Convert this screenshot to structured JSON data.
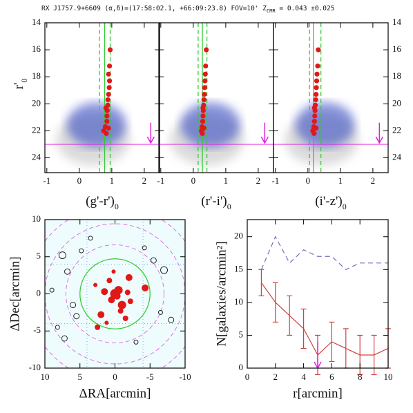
{
  "title": {
    "main": "RX J1757.9+6609 (α,δ)=(17:58:02.1, +66:09:23.8) FOV=10' Z",
    "sub": "CMR",
    "tail": " = 0.043 ±0.025"
  },
  "chart_data": [
    {
      "type": "cmd",
      "xlabel": {
        "text": "(g'-r')",
        "sub": "0"
      },
      "ylabel": {
        "text": "r'",
        "sub": "0"
      },
      "ytick_side": "left",
      "xlim": [
        -1.06,
        2.47
      ],
      "ylim": [
        25.1,
        14
      ],
      "xticks": [
        -1,
        0,
        1,
        2
      ],
      "yticks": [
        14,
        16,
        18,
        20,
        22,
        24
      ],
      "color": "#e01818",
      "x": [
        0.95,
        0.93,
        0.9,
        0.93,
        0.92,
        0.9,
        0.88,
        0.88,
        0.82,
        0.86,
        0.85,
        0.85,
        0.8,
        0.9,
        0.75,
        0.83
      ],
      "y": [
        16,
        17.2,
        17.8,
        18.3,
        18.8,
        19.3,
        19.7,
        20.1,
        20.3,
        20.5,
        20.9,
        21.3,
        21.7,
        21.8,
        22,
        22.2
      ],
      "sequence": {
        "center": 0.78,
        "edges": [
          0.62,
          0.95
        ]
      },
      "mag_limit": 23,
      "arrow": {
        "x": 2.2,
        "y": [
          21.4,
          22.9
        ]
      }
    },
    {
      "type": "cmd",
      "xlabel": {
        "text": "(r'-i')",
        "sub": "0"
      },
      "ytick_side": "none",
      "xlim": [
        -1.06,
        2.47
      ],
      "ylim": [
        25.1,
        14
      ],
      "xticks": [
        -1,
        0,
        1,
        2
      ],
      "yticks": [
        14,
        16,
        18,
        20,
        22,
        24
      ],
      "color": "#e01818",
      "x": [
        0.4,
        0.38,
        0.37,
        0.36,
        0.35,
        0.34,
        0.33,
        0.32,
        0.3,
        0.31,
        0.3,
        0.29,
        0.27,
        0.33,
        0.25,
        0.28
      ],
      "y": [
        16,
        17.2,
        17.8,
        18.3,
        18.8,
        19.3,
        19.7,
        20.1,
        20.3,
        20.5,
        20.9,
        21.3,
        21.7,
        21.8,
        22,
        22.2
      ],
      "sequence": {
        "center": 0.28,
        "edges": [
          0.15,
          0.42
        ]
      },
      "mag_limit": 23,
      "arrow": {
        "x": 2.2,
        "y": [
          21.4,
          22.9
        ]
      }
    },
    {
      "type": "cmd",
      "xlabel": {
        "text": "(i'-z')",
        "sub": "0"
      },
      "ytick_side": "right",
      "xlim": [
        -1.06,
        2.47
      ],
      "ylim": [
        25.1,
        14
      ],
      "xticks": [
        -1,
        0,
        1,
        2
      ],
      "yticks": [
        14,
        16,
        18,
        20,
        22,
        24
      ],
      "color": "#e01818",
      "x": [
        0.32,
        0.3,
        0.28,
        0.27,
        0.26,
        0.25,
        0.24,
        0.23,
        0.2,
        0.22,
        0.21,
        0.2,
        0.18,
        0.25,
        0.15,
        0.19
      ],
      "y": [
        16,
        17.2,
        17.8,
        18.3,
        18.8,
        19.3,
        19.7,
        20.1,
        20.3,
        20.5,
        20.9,
        21.3,
        21.7,
        21.8,
        22,
        22.2
      ],
      "sequence": {
        "center": 0.17,
        "edges": [
          0.05,
          0.4
        ]
      },
      "mag_limit": 23,
      "arrow": {
        "x": 2.2,
        "y": [
          21.4,
          22.9
        ]
      }
    },
    {
      "type": "skymap",
      "xlabel": "ΔRA[arcmin]",
      "ylabel": "ΔDec[arcmin]",
      "xlim": [
        10,
        -10
      ],
      "ylim": [
        -10,
        10
      ],
      "xticks": [
        10,
        5,
        0,
        -5,
        -10
      ],
      "yticks": [
        -10,
        -5,
        0,
        5,
        10
      ],
      "color": "#e01818",
      "members": {
        "x": [
          0,
          -0.5,
          0.5,
          -1,
          1.5,
          -2,
          2,
          -1.5,
          0.8,
          -4.3,
          -2.2,
          2.5,
          -0.3,
          1.2,
          -1.8,
          2.8,
          0.2,
          -0.8
        ],
        "y": [
          0,
          0.5,
          -0.8,
          -1.5,
          0.3,
          2.2,
          -2.8,
          -3.3,
          1.8,
          0.8,
          -1,
          -4.5,
          -0.3,
          -3.9,
          0.2,
          1.2,
          3,
          -2.3
        ],
        "size": [
          7,
          6,
          5,
          6,
          5,
          5,
          5,
          4,
          4,
          5,
          4,
          4,
          5,
          3,
          4,
          3,
          3,
          4
        ]
      },
      "others": {
        "x": [
          7.5,
          6.8,
          5.5,
          8.2,
          -5.5,
          -7,
          3.5,
          -3,
          6,
          -6.5,
          9,
          -8,
          4.8,
          -4.2,
          7.2
        ],
        "y": [
          5.2,
          3,
          -3,
          -4.5,
          4.5,
          3.2,
          7.5,
          -6.5,
          -1.5,
          -2.5,
          0.5,
          -3.5,
          5.8,
          6.2,
          -6
        ],
        "size": [
          5,
          4,
          4,
          3,
          4,
          5,
          3,
          3,
          4,
          3,
          3,
          4,
          3,
          3,
          4
        ]
      },
      "circles": {
        "solid": 5,
        "dashed": [
          7,
          10,
          12.5
        ]
      }
    },
    {
      "type": "line",
      "xlabel": "r[arcmin]",
      "ylabel": "N[galaxies/arcmin²]",
      "xlim": [
        0,
        10
      ],
      "ylim": [
        0,
        22.6
      ],
      "xticks": [
        0,
        2,
        4,
        6,
        8,
        10
      ],
      "yticks": [
        0,
        5,
        10,
        15,
        20
      ],
      "x": [
        1,
        2,
        3,
        4,
        5,
        6,
        7,
        8,
        9,
        10
      ],
      "series": [
        {
          "color": "#d04040",
          "values": [
            13,
            10,
            8,
            6,
            2,
            4,
            3,
            2,
            2,
            3
          ],
          "errors": [
            2,
            3,
            3,
            3,
            3,
            3,
            3,
            3,
            3,
            3
          ]
        },
        {
          "color": "#7070c0",
          "dashed": true,
          "values": [
            15,
            20,
            16,
            18,
            17,
            17,
            15,
            16,
            16,
            16
          ]
        }
      ],
      "arrow": {
        "x": 5,
        "y": [
          4,
          0
        ]
      }
    }
  ]
}
